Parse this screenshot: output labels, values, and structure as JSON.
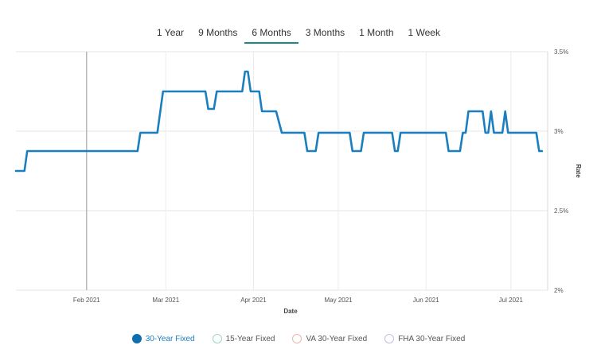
{
  "tabs": [
    {
      "label": "1 Year",
      "active": false
    },
    {
      "label": "9 Months",
      "active": false
    },
    {
      "label": "6 Months",
      "active": true
    },
    {
      "label": "3 Months",
      "active": false
    },
    {
      "label": "1 Month",
      "active": false
    },
    {
      "label": "1 Week",
      "active": false
    }
  ],
  "legend": [
    {
      "label": "30-Year Fixed",
      "color": "#0f6fae",
      "active": true
    },
    {
      "label": "15-Year Fixed",
      "color": "#9fd4c9",
      "active": false
    },
    {
      "label": "VA 30-Year Fixed",
      "color": "#e8b7ae",
      "active": false
    },
    {
      "label": "FHA 30-Year Fixed",
      "color": "#c7bde6",
      "active": false
    }
  ],
  "chart_data": {
    "type": "line",
    "xlabel": "Date",
    "ylabel": "Rate",
    "ylim": [
      2.0,
      3.5
    ],
    "yticks": [
      "3.5%",
      "3%",
      "2.5%",
      "2%"
    ],
    "ytick_values": [
      3.5,
      3.0,
      2.5,
      2.0
    ],
    "xlim": [
      "2021-01-07",
      "2021-07-14"
    ],
    "xticks": [
      {
        "label": "Feb 2021",
        "date": "2021-02-01"
      },
      {
        "label": "Mar 2021",
        "date": "2021-03-01"
      },
      {
        "label": "Apr 2021",
        "date": "2021-04-01"
      },
      {
        "label": "May 2021",
        "date": "2021-05-01"
      },
      {
        "label": "Jun 2021",
        "date": "2021-06-01"
      },
      {
        "label": "Jul 2021",
        "date": "2021-07-01"
      }
    ],
    "grid": true,
    "crosshair_date": "2021-02-01",
    "series": [
      {
        "name": "30-Year Fixed",
        "color": "#1b7fbf",
        "points": [
          [
            "2021-01-07",
            2.75
          ],
          [
            "2021-01-10",
            2.75
          ],
          [
            "2021-01-11",
            2.875
          ],
          [
            "2021-02-19",
            2.875
          ],
          [
            "2021-02-20",
            2.99
          ],
          [
            "2021-02-26",
            2.99
          ],
          [
            "2021-02-28",
            3.25
          ],
          [
            "2021-03-15",
            3.25
          ],
          [
            "2021-03-16",
            3.14
          ],
          [
            "2021-03-18",
            3.14
          ],
          [
            "2021-03-19",
            3.25
          ],
          [
            "2021-03-28",
            3.25
          ],
          [
            "2021-03-29",
            3.375
          ],
          [
            "2021-03-30",
            3.375
          ],
          [
            "2021-03-31",
            3.25
          ],
          [
            "2021-04-03",
            3.25
          ],
          [
            "2021-04-04",
            3.125
          ],
          [
            "2021-04-09",
            3.125
          ],
          [
            "2021-04-11",
            2.99
          ],
          [
            "2021-04-19",
            2.99
          ],
          [
            "2021-04-20",
            2.875
          ],
          [
            "2021-04-23",
            2.875
          ],
          [
            "2021-04-24",
            2.99
          ],
          [
            "2021-05-05",
            2.99
          ],
          [
            "2021-05-06",
            2.875
          ],
          [
            "2021-05-09",
            2.875
          ],
          [
            "2021-05-10",
            2.99
          ],
          [
            "2021-05-20",
            2.99
          ],
          [
            "2021-05-21",
            2.875
          ],
          [
            "2021-05-22",
            2.875
          ],
          [
            "2021-05-23",
            2.99
          ],
          [
            "2021-06-08",
            2.99
          ],
          [
            "2021-06-09",
            2.875
          ],
          [
            "2021-06-13",
            2.875
          ],
          [
            "2021-06-14",
            2.99
          ],
          [
            "2021-06-15",
            2.99
          ],
          [
            "2021-06-16",
            3.125
          ],
          [
            "2021-06-21",
            3.125
          ],
          [
            "2021-06-22",
            2.99
          ],
          [
            "2021-06-23",
            2.99
          ],
          [
            "2021-06-24",
            3.125
          ],
          [
            "2021-06-25",
            2.99
          ],
          [
            "2021-06-28",
            2.99
          ],
          [
            "2021-06-29",
            3.125
          ],
          [
            "2021-06-30",
            2.99
          ],
          [
            "2021-07-10",
            2.99
          ],
          [
            "2021-07-11",
            2.875
          ],
          [
            "2021-07-12",
            2.875
          ]
        ]
      }
    ]
  }
}
